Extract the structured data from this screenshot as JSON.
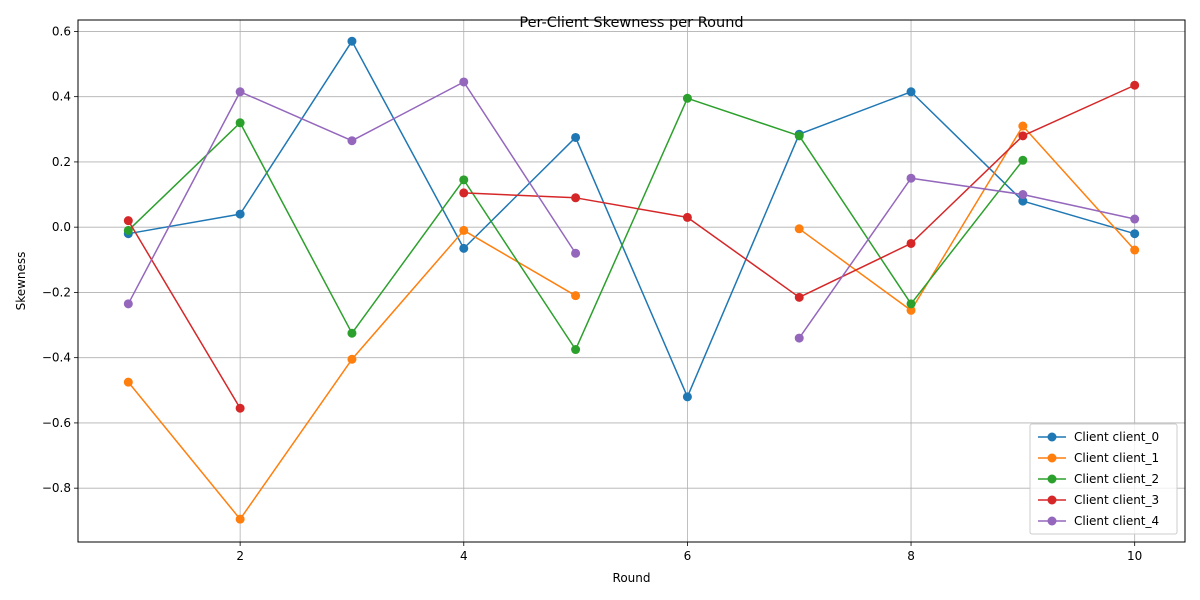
{
  "chart_data": {
    "type": "line",
    "title": "Per-Client Skewness per Round",
    "xlabel": "Round",
    "ylabel": "Skewness",
    "xlim": [
      0.55,
      10.45
    ],
    "ylim": [
      -0.965,
      0.635
    ],
    "xticks": [
      2,
      4,
      6,
      8,
      10
    ],
    "xtick_labels": [
      "2",
      "4",
      "6",
      "8",
      "10"
    ],
    "yticks": [
      -0.8,
      -0.6,
      -0.4,
      -0.2,
      0.0,
      0.2,
      0.4,
      0.6
    ],
    "ytick_labels": [
      "−0.8",
      "−0.6",
      "−0.4",
      "−0.2",
      "0.0",
      "0.2",
      "0.4",
      "0.6"
    ],
    "grid": true,
    "legend_position": "lower-right",
    "x": [
      1,
      2,
      3,
      4,
      5,
      6,
      7,
      8,
      9,
      10
    ],
    "series": [
      {
        "name": "Client client_0",
        "color": "#1f77b4",
        "values": [
          -0.02,
          0.04,
          0.57,
          -0.065,
          0.275,
          -0.52,
          0.285,
          0.415,
          0.08,
          -0.02
        ]
      },
      {
        "name": "Client client_1",
        "color": "#ff7f0e",
        "values": [
          -0.475,
          -0.895,
          -0.405,
          -0.01,
          -0.21,
          null,
          -0.005,
          -0.255,
          0.31,
          -0.07
        ]
      },
      {
        "name": "Client client_2",
        "color": "#2ca02c",
        "values": [
          -0.01,
          0.32,
          -0.325,
          0.145,
          -0.375,
          0.395,
          0.28,
          -0.235,
          0.205,
          null
        ]
      },
      {
        "name": "Client client_3",
        "color": "#d62728",
        "values": [
          0.02,
          -0.555,
          null,
          0.105,
          0.09,
          0.03,
          -0.215,
          -0.05,
          0.28,
          0.435
        ]
      },
      {
        "name": "Client client_4",
        "color": "#9467bd",
        "values": [
          -0.235,
          0.415,
          0.265,
          0.445,
          -0.08,
          null,
          -0.34,
          0.15,
          0.1,
          0.025
        ]
      }
    ]
  }
}
